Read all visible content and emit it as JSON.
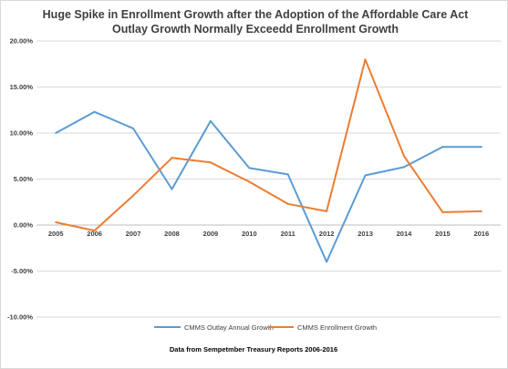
{
  "chart_data": {
    "type": "line",
    "title_lines": [
      "Huge Spike in Enrollment Growth after the Adoption of the Affordable Care Act",
      "Outlay Growth Normally Exceedd Enrollment Growth"
    ],
    "xlabel": "",
    "ylabel": "",
    "categories": [
      "2005",
      "2006",
      "2007",
      "2008",
      "2009",
      "2010",
      "2011",
      "2012",
      "2013",
      "2014",
      "2015",
      "2016"
    ],
    "ylim": [
      -10,
      20
    ],
    "y_ticks": [
      20,
      15,
      10,
      5,
      0,
      -5,
      -10
    ],
    "y_tick_labels": [
      "20.00%",
      "15.00%",
      "10.00%",
      "5.00%",
      "0.00%",
      "-5.00%",
      "-10.00%"
    ],
    "grid": true,
    "legend_position": "bottom",
    "series": [
      {
        "name": "CMMS Outlay Annual Growth",
        "color": "#5b9bd5",
        "values": [
          10.0,
          12.3,
          10.5,
          3.9,
          11.3,
          6.2,
          5.5,
          -4.0,
          5.4,
          6.3,
          8.5,
          8.5
        ]
      },
      {
        "name": "CMMS Enrollment Growth",
        "color": "#ed7d31",
        "values": [
          0.3,
          -0.6,
          3.2,
          7.3,
          6.8,
          4.7,
          2.3,
          1.5,
          18.0,
          7.5,
          1.4,
          1.5
        ]
      }
    ],
    "caption": "Data from Sempetmber Treasury Reports 2006-2016"
  }
}
